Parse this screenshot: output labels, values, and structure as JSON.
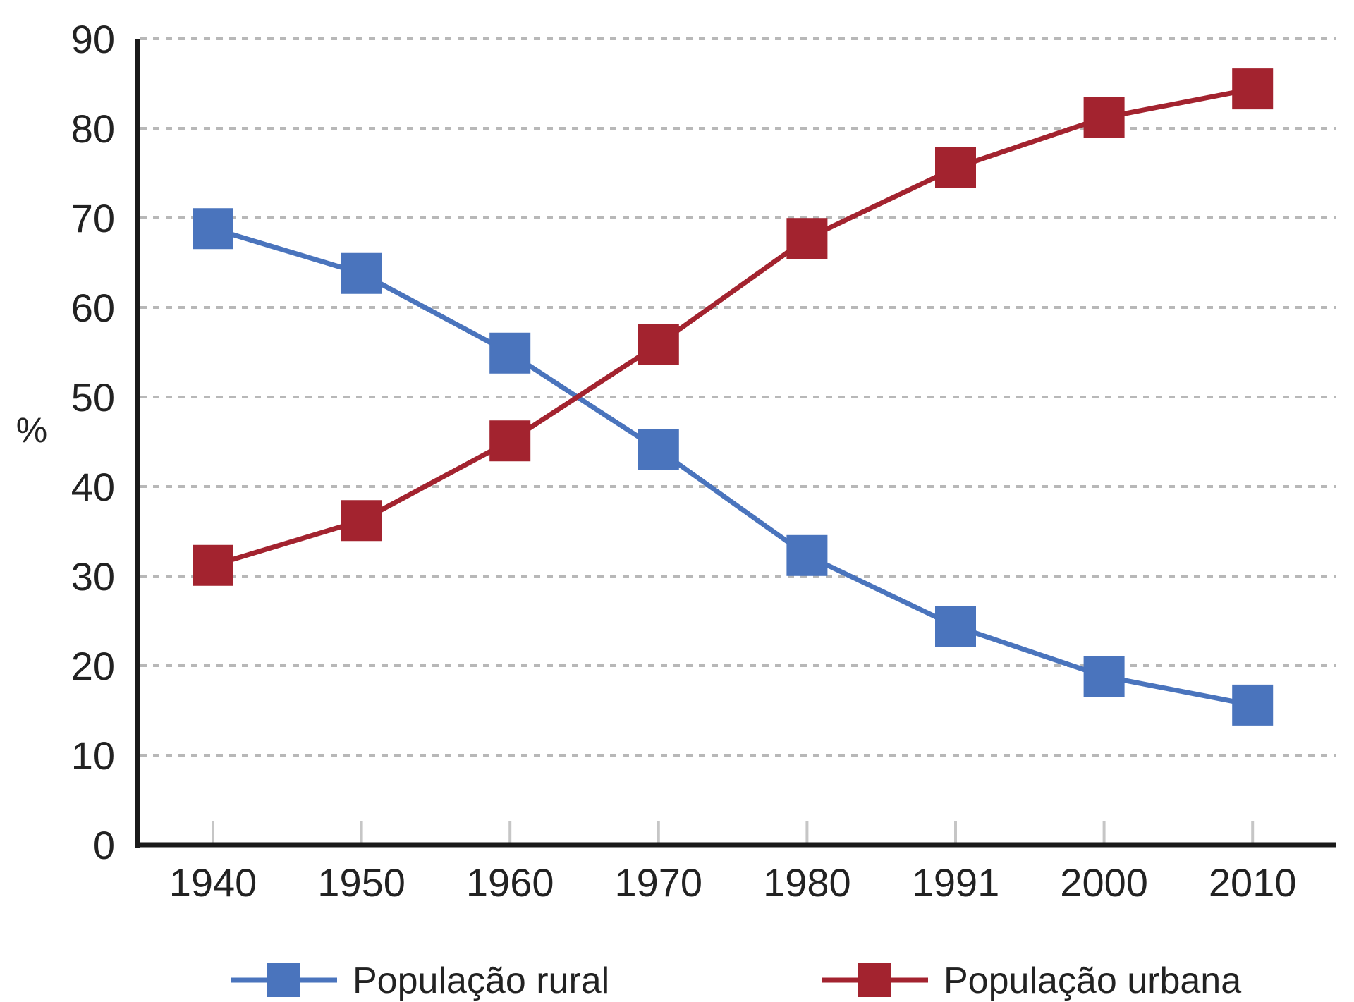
{
  "chart_data": {
    "type": "line",
    "title": "",
    "xlabel": "",
    "ylabel": "%",
    "categories": [
      "1940",
      "1950",
      "1960",
      "1970",
      "1980",
      "1991",
      "2000",
      "2010"
    ],
    "ylim": [
      0,
      90
    ],
    "yticks": [
      "0",
      "10",
      "20",
      "30",
      "40",
      "50",
      "60",
      "70",
      "80",
      "90"
    ],
    "grid": true,
    "legend_position": "bottom",
    "series": [
      {
        "name": "População rural",
        "color": "#4a74bd",
        "marker": "square",
        "values": [
          68.8,
          63.8,
          54.9,
          44.1,
          32.3,
          24.4,
          18.8,
          15.6
        ]
      },
      {
        "name": "População urbana",
        "color": "#a3232f",
        "marker": "square",
        "values": [
          31.2,
          36.2,
          45.1,
          55.9,
          67.7,
          75.6,
          81.2,
          84.4
        ]
      }
    ]
  }
}
